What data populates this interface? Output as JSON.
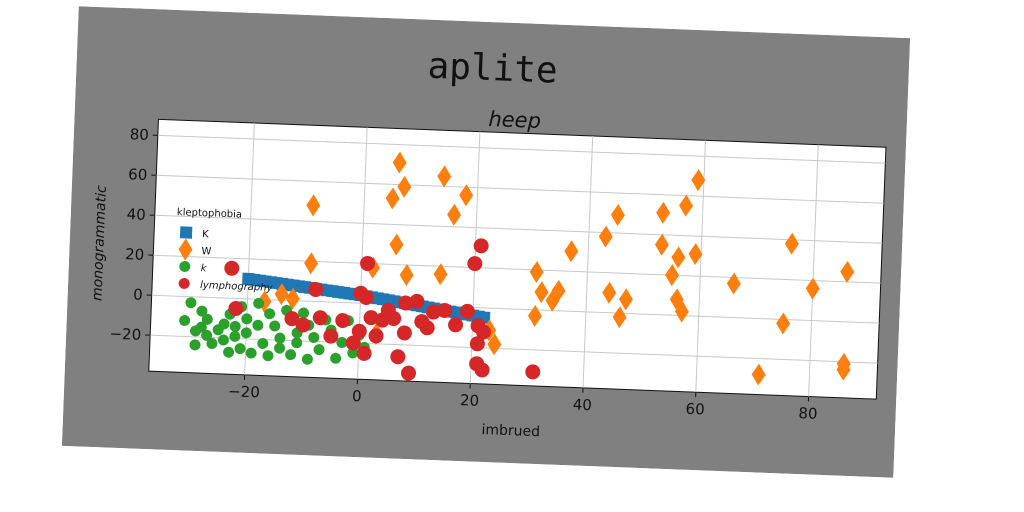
{
  "figure": {
    "suptitle": "aplite",
    "background": "#808080"
  },
  "chart_data": {
    "type": "scatter",
    "title": "heep",
    "xlabel": "imbrued",
    "ylabel": "monogrammatic",
    "xlim": [
      -37,
      92
    ],
    "ylim": [
      -38,
      88
    ],
    "xticks": [
      -20,
      0,
      20,
      40,
      60,
      80
    ],
    "yticks": [
      -20,
      0,
      20,
      40,
      60,
      80
    ],
    "grid": true,
    "legend": {
      "title": "kleptophobia",
      "placement": "center-left"
    },
    "series": [
      {
        "name": "K",
        "marker": "square",
        "color": "#1f77b4",
        "points": [
          [
            -20,
            10
          ],
          [
            -19,
            9.7
          ],
          [
            -18,
            9.4
          ],
          [
            -17,
            9.1
          ],
          [
            -16,
            8.8
          ],
          [
            -15,
            8.5
          ],
          [
            -14,
            8.2
          ],
          [
            -13,
            7.9
          ],
          [
            -12,
            7.6
          ],
          [
            -11,
            7.3
          ],
          [
            -10,
            7.0
          ],
          [
            -9,
            6.7
          ],
          [
            -8,
            6.4
          ],
          [
            -7,
            6.1
          ],
          [
            -6,
            5.8
          ],
          [
            -5,
            5.5
          ],
          [
            -4,
            5.2
          ],
          [
            -3,
            4.9
          ],
          [
            -2,
            4.6
          ],
          [
            -1,
            4.3
          ],
          [
            0,
            4.0
          ],
          [
            1,
            3.6
          ],
          [
            2,
            3.2
          ],
          [
            3,
            2.8
          ],
          [
            4,
            2.4
          ],
          [
            5,
            2.0
          ],
          [
            6,
            1.6
          ],
          [
            7,
            1.2
          ],
          [
            8,
            0.8
          ],
          [
            9,
            0.4
          ],
          [
            10,
            0.0
          ],
          [
            11,
            -0.4
          ],
          [
            12,
            -0.8
          ],
          [
            13,
            -1.2
          ],
          [
            14,
            -1.6
          ],
          [
            15,
            -2.0
          ],
          [
            16,
            -2.4
          ],
          [
            17,
            -2.8
          ],
          [
            18,
            -3.2
          ],
          [
            19,
            -3.6
          ],
          [
            20,
            -4.0
          ],
          [
            21,
            -4.4
          ],
          [
            22,
            -4.8
          ]
        ]
      },
      {
        "name": "W",
        "marker": "diamond",
        "color": "#ff7f0e",
        "points": [
          [
            6,
            71
          ],
          [
            7,
            59
          ],
          [
            5,
            53
          ],
          [
            14,
            65
          ],
          [
            18,
            56
          ],
          [
            16,
            46
          ],
          [
            -9,
            48
          ],
          [
            6,
            30
          ],
          [
            8,
            15
          ],
          [
            2,
            18
          ],
          [
            -9,
            19
          ],
          [
            14,
            16
          ],
          [
            -14,
            3
          ],
          [
            -17,
            -1
          ],
          [
            -12,
            1
          ],
          [
            3,
            -15
          ],
          [
            23,
            -11
          ],
          [
            24,
            -18
          ],
          [
            31,
            19
          ],
          [
            32,
            9
          ],
          [
            34,
            5
          ],
          [
            35,
            10
          ],
          [
            31,
            -3
          ],
          [
            37,
            30
          ],
          [
            43,
            38
          ],
          [
            45,
            49
          ],
          [
            44,
            10
          ],
          [
            46,
            -2
          ],
          [
            47,
            7
          ],
          [
            53,
            51
          ],
          [
            53,
            35
          ],
          [
            56,
            29
          ],
          [
            55,
            20
          ],
          [
            56,
            8
          ],
          [
            57,
            55
          ],
          [
            57,
            2
          ],
          [
            59,
            68
          ],
          [
            59,
            31
          ],
          [
            66,
            17
          ],
          [
            71,
            -28
          ],
          [
            75,
            -2
          ],
          [
            76,
            38
          ],
          [
            80,
            16
          ],
          [
            86,
            25
          ],
          [
            86,
            -21
          ],
          [
            86,
            -24
          ]
        ]
      },
      {
        "name": "k",
        "marker": "circle-small",
        "color": "#2ca02c",
        "points": [
          [
            -31,
            -12
          ],
          [
            -30,
            -3
          ],
          [
            -29,
            -17
          ],
          [
            -29,
            -24
          ],
          [
            -28,
            -7
          ],
          [
            -27,
            -11
          ],
          [
            -27,
            -19
          ],
          [
            -26,
            -23
          ],
          [
            -25,
            -16
          ],
          [
            -24,
            -13
          ],
          [
            -24,
            -21
          ],
          [
            -23,
            -8
          ],
          [
            -23,
            -27
          ],
          [
            -22,
            -14
          ],
          [
            -22,
            -19
          ],
          [
            -21,
            -4
          ],
          [
            -21,
            -25
          ],
          [
            -20,
            -10
          ],
          [
            -20,
            -17
          ],
          [
            -19,
            -27
          ],
          [
            -18,
            -2
          ],
          [
            -18,
            -13
          ],
          [
            -17,
            -22
          ],
          [
            -16,
            -7
          ],
          [
            -16,
            -28
          ],
          [
            -15,
            -13
          ],
          [
            -14,
            -19
          ],
          [
            -14,
            -24
          ],
          [
            -13,
            -5
          ],
          [
            -12,
            -10
          ],
          [
            -12,
            -27
          ],
          [
            -11,
            -16
          ],
          [
            -11,
            -21
          ],
          [
            -10,
            -6
          ],
          [
            -9,
            -12
          ],
          [
            -9,
            -29
          ],
          [
            -8,
            -18
          ],
          [
            -7,
            -24
          ],
          [
            -6,
            -9
          ],
          [
            -5,
            -14
          ],
          [
            -4,
            -28
          ],
          [
            -3,
            -20
          ],
          [
            -2,
            -9
          ],
          [
            -1,
            -25
          ],
          [
            0,
            -16
          ],
          [
            1,
            -22
          ],
          [
            -28,
            -15
          ]
        ]
      },
      {
        "name": "lymphography",
        "marker": "circle",
        "color": "#d62728",
        "points": [
          [
            -23,
            15
          ],
          [
            -22,
            -5
          ],
          [
            -12,
            -9
          ],
          [
            -10,
            -12
          ],
          [
            -8,
            6
          ],
          [
            -7,
            -8
          ],
          [
            -5,
            -17
          ],
          [
            -3,
            -9
          ],
          [
            -1,
            -20
          ],
          [
            0,
            -14
          ],
          [
            0,
            5
          ],
          [
            1,
            3
          ],
          [
            1,
            20
          ],
          [
            1,
            -25
          ],
          [
            2,
            -7
          ],
          [
            3,
            -16
          ],
          [
            4,
            -8
          ],
          [
            5,
            -3
          ],
          [
            6,
            -7
          ],
          [
            7,
            -26
          ],
          [
            8,
            -14
          ],
          [
            8,
            1
          ],
          [
            9,
            -34
          ],
          [
            10,
            2
          ],
          [
            11,
            -8
          ],
          [
            12,
            -11
          ],
          [
            13,
            -3
          ],
          [
            15,
            -2
          ],
          [
            17,
            -9
          ],
          [
            19,
            -2
          ],
          [
            20,
            22
          ],
          [
            21,
            31
          ],
          [
            21,
            -9
          ],
          [
            21,
            -18
          ],
          [
            22,
            -12
          ],
          [
            21,
            -28
          ],
          [
            22,
            -31
          ],
          [
            31,
            -31
          ]
        ]
      }
    ]
  }
}
